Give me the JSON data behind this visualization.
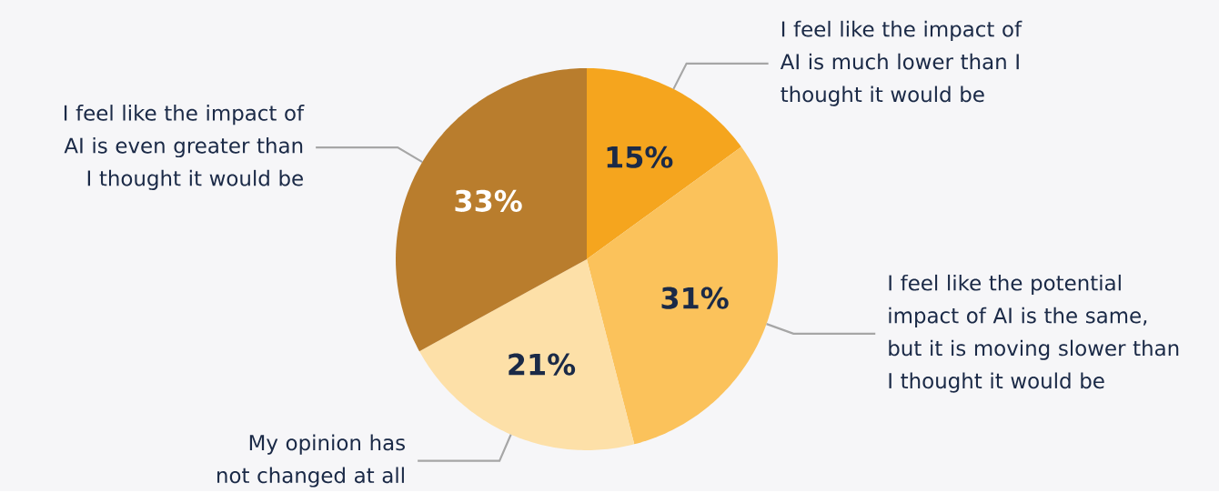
{
  "chart_data": {
    "type": "pie",
    "categories": [
      "I feel like the impact of AI is much lower than I thought it would be",
      "I feel like the potential impact of AI is the same, but it is moving slower than I thought it would be",
      "My opinion has not changed at all",
      "I feel like the impact of AI is even greater than I thought it would be"
    ],
    "values": [
      15,
      31,
      21,
      33
    ],
    "colors": [
      "#f5a51e",
      "#fbc25b",
      "#fde0a8",
      "#b97d2d"
    ],
    "value_labels": [
      "15%",
      "31%",
      "21%",
      "33%"
    ]
  }
}
